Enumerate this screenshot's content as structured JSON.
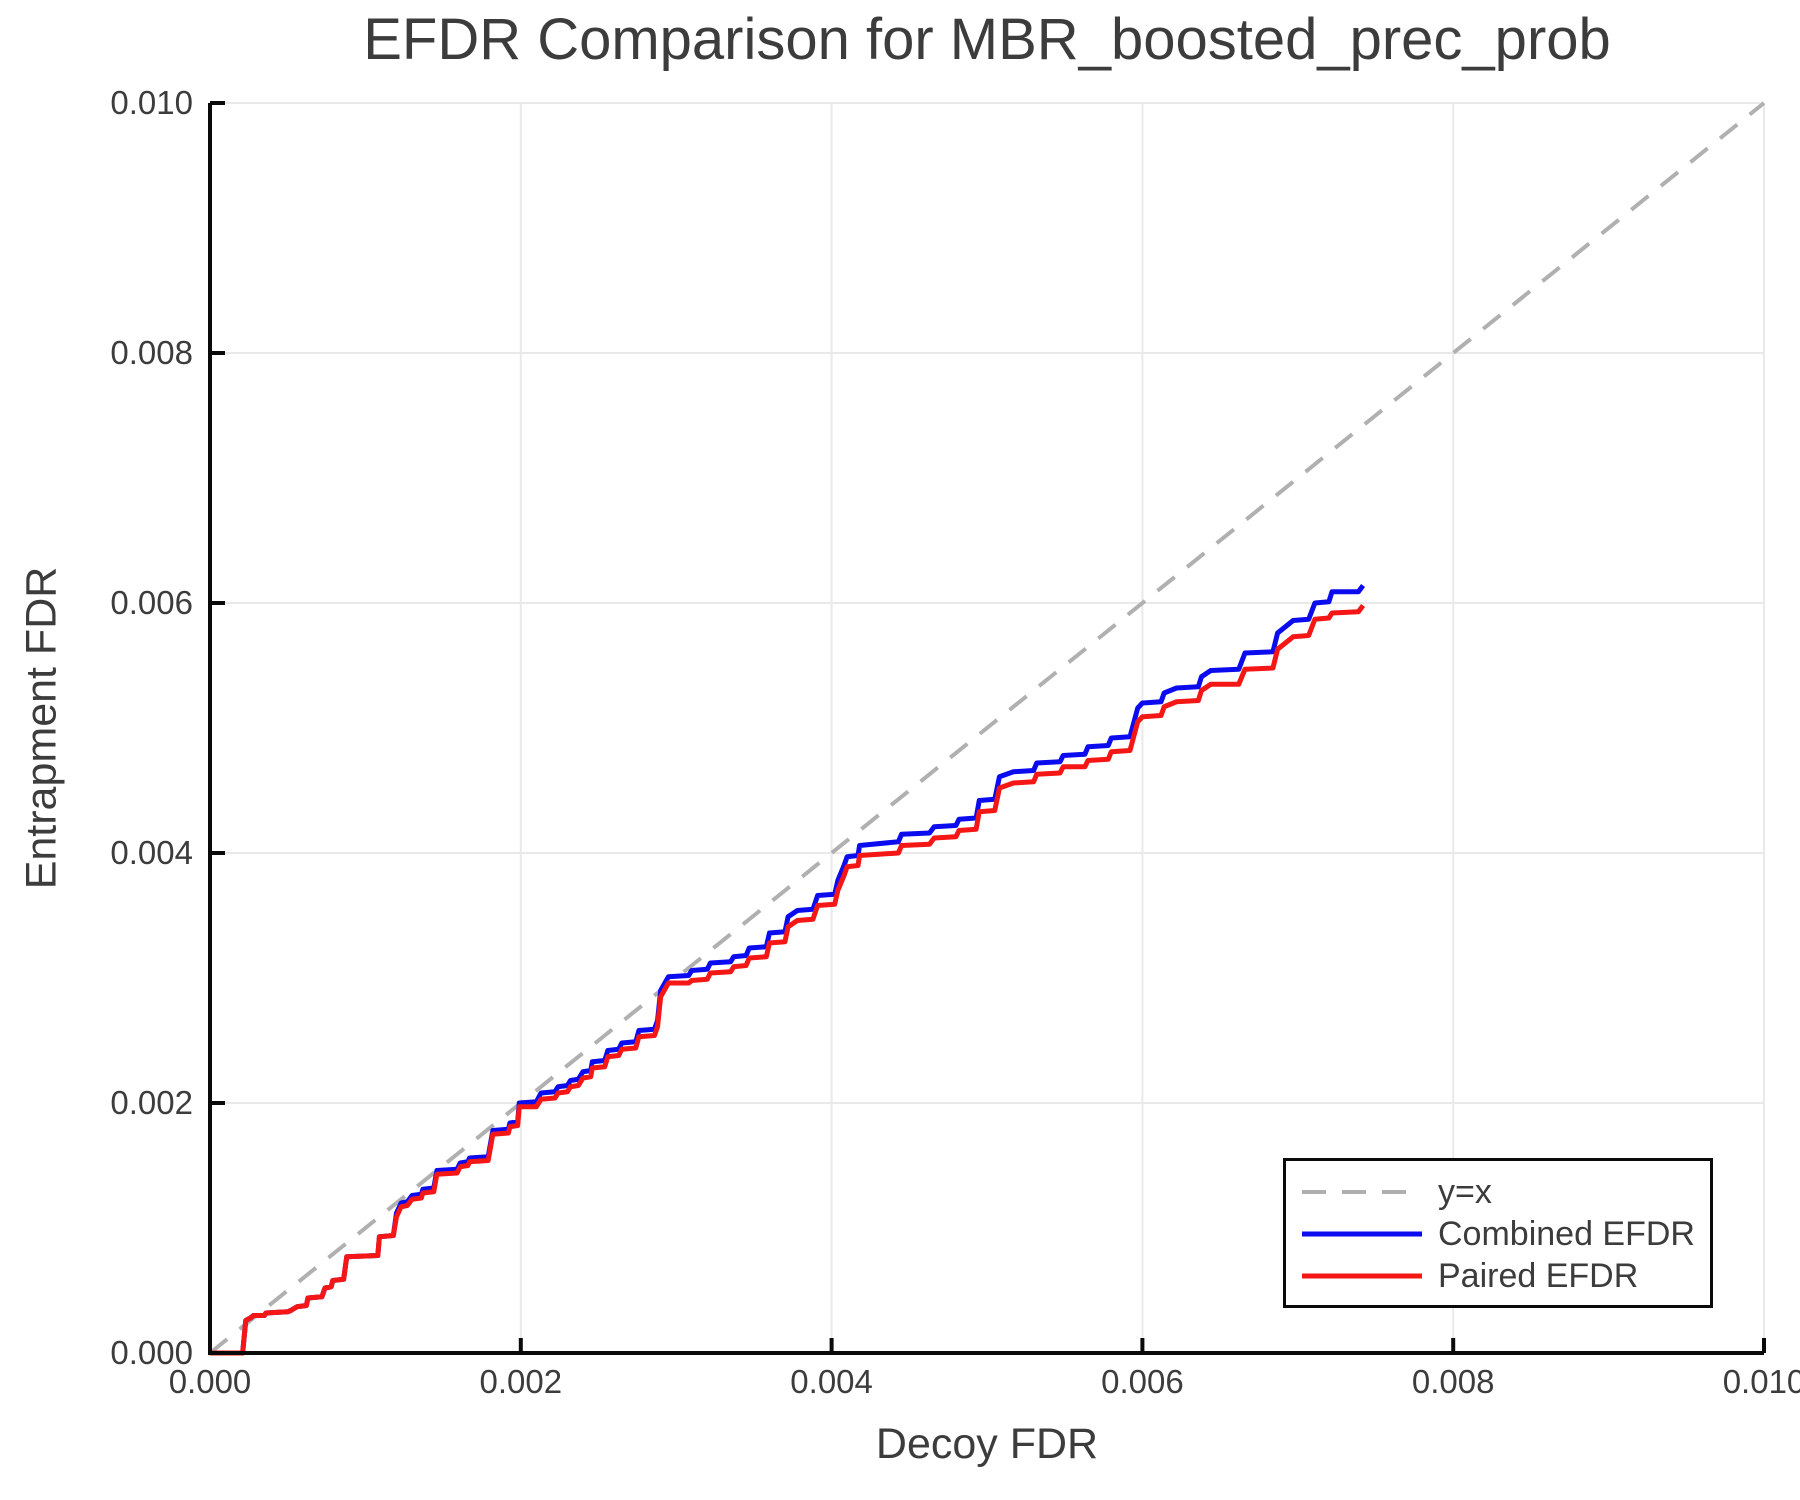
{
  "title": "EFDR Comparison for MBR_boosted_prec_prob",
  "chart_data": {
    "type": "line",
    "title": "EFDR Comparison for MBR_boosted_prec_prob",
    "xlabel": "Decoy FDR",
    "ylabel": "Entrapment FDR",
    "xlim": [
      0.0,
      0.01
    ],
    "ylim": [
      0.0,
      0.01
    ],
    "xtick_values": [
      0.0,
      0.002,
      0.004,
      0.006,
      0.008,
      0.01
    ],
    "xtick_labels": [
      "0.000",
      "0.002",
      "0.004",
      "0.006",
      "0.008",
      "0.010"
    ],
    "ytick_values": [
      0.0,
      0.002,
      0.004,
      0.006,
      0.008,
      0.01
    ],
    "ytick_labels": [
      "0.000",
      "0.002",
      "0.004",
      "0.006",
      "0.008",
      "0.010"
    ],
    "grid": true,
    "grid_color": "#e9e9e9",
    "spine_color": "#0a0a0a",
    "text_color": "#3c3c3c",
    "background_color": "#ffffff",
    "legend": {
      "position": "lower-right"
    },
    "point_unit": 0.001,
    "series": [
      {
        "name": "y=x",
        "color": "#b0b0b0",
        "style": "dashed",
        "width": 4,
        "points": [
          [
            0.0,
            0.0
          ],
          [
            10.0,
            10.0
          ]
        ]
      },
      {
        "name": "Combined EFDR",
        "color": "#0b0bf0",
        "style": "solid",
        "width": 5,
        "points": [
          [
            0.0,
            0.0
          ],
          [
            0.21,
            0.0
          ],
          [
            0.23,
            0.26
          ],
          [
            0.26,
            0.28
          ],
          [
            0.28,
            0.3
          ],
          [
            0.35,
            0.3
          ],
          [
            0.36,
            0.32
          ],
          [
            0.5,
            0.33
          ],
          [
            0.52,
            0.34
          ],
          [
            0.56,
            0.37
          ],
          [
            0.62,
            0.38
          ],
          [
            0.63,
            0.44
          ],
          [
            0.72,
            0.45
          ],
          [
            0.74,
            0.52
          ],
          [
            0.78,
            0.53
          ],
          [
            0.79,
            0.58
          ],
          [
            0.86,
            0.59
          ],
          [
            0.88,
            0.77
          ],
          [
            1.08,
            0.78
          ],
          [
            1.09,
            0.93
          ],
          [
            1.18,
            0.94
          ],
          [
            1.2,
            1.12
          ],
          [
            1.23,
            1.2
          ],
          [
            1.27,
            1.21
          ],
          [
            1.3,
            1.26
          ],
          [
            1.36,
            1.27
          ],
          [
            1.37,
            1.31
          ],
          [
            1.44,
            1.32
          ],
          [
            1.46,
            1.46
          ],
          [
            1.59,
            1.47
          ],
          [
            1.61,
            1.52
          ],
          [
            1.66,
            1.53
          ],
          [
            1.67,
            1.56
          ],
          [
            1.79,
            1.57
          ],
          [
            1.82,
            1.78
          ],
          [
            1.92,
            1.79
          ],
          [
            1.93,
            1.84
          ],
          [
            1.98,
            1.85
          ],
          [
            1.99,
            2.0
          ],
          [
            2.1,
            2.01
          ],
          [
            2.13,
            2.08
          ],
          [
            2.22,
            2.09
          ],
          [
            2.24,
            2.13
          ],
          [
            2.3,
            2.14
          ],
          [
            2.32,
            2.18
          ],
          [
            2.37,
            2.19
          ],
          [
            2.4,
            2.25
          ],
          [
            2.45,
            2.26
          ],
          [
            2.46,
            2.33
          ],
          [
            2.54,
            2.34
          ],
          [
            2.56,
            2.42
          ],
          [
            2.63,
            2.43
          ],
          [
            2.65,
            2.48
          ],
          [
            2.74,
            2.49
          ],
          [
            2.76,
            2.58
          ],
          [
            2.86,
            2.59
          ],
          [
            2.88,
            2.66
          ],
          [
            2.9,
            2.9
          ],
          [
            2.95,
            3.01
          ],
          [
            3.08,
            3.02
          ],
          [
            3.1,
            3.06
          ],
          [
            3.2,
            3.07
          ],
          [
            3.22,
            3.12
          ],
          [
            3.35,
            3.13
          ],
          [
            3.37,
            3.17
          ],
          [
            3.45,
            3.18
          ],
          [
            3.47,
            3.24
          ],
          [
            3.58,
            3.25
          ],
          [
            3.6,
            3.36
          ],
          [
            3.7,
            3.37
          ],
          [
            3.72,
            3.49
          ],
          [
            3.78,
            3.54
          ],
          [
            3.88,
            3.55
          ],
          [
            3.91,
            3.66
          ],
          [
            4.02,
            3.67
          ],
          [
            4.04,
            3.78
          ],
          [
            4.08,
            3.9
          ],
          [
            4.1,
            3.97
          ],
          [
            4.17,
            3.98
          ],
          [
            4.18,
            4.06
          ],
          [
            4.43,
            4.09
          ],
          [
            4.45,
            4.15
          ],
          [
            4.63,
            4.16
          ],
          [
            4.66,
            4.21
          ],
          [
            4.8,
            4.22
          ],
          [
            4.82,
            4.27
          ],
          [
            4.93,
            4.28
          ],
          [
            4.95,
            4.42
          ],
          [
            5.05,
            4.43
          ],
          [
            5.08,
            4.61
          ],
          [
            5.17,
            4.65
          ],
          [
            5.3,
            4.66
          ],
          [
            5.32,
            4.72
          ],
          [
            5.47,
            4.73
          ],
          [
            5.49,
            4.78
          ],
          [
            5.63,
            4.79
          ],
          [
            5.65,
            4.85
          ],
          [
            5.78,
            4.86
          ],
          [
            5.8,
            4.92
          ],
          [
            5.92,
            4.93
          ],
          [
            5.97,
            5.16
          ],
          [
            6.0,
            5.2
          ],
          [
            6.12,
            5.21
          ],
          [
            6.14,
            5.28
          ],
          [
            6.22,
            5.32
          ],
          [
            6.36,
            5.33
          ],
          [
            6.38,
            5.41
          ],
          [
            6.44,
            5.46
          ],
          [
            6.62,
            5.47
          ],
          [
            6.66,
            5.6
          ],
          [
            6.84,
            5.61
          ],
          [
            6.87,
            5.76
          ],
          [
            6.97,
            5.86
          ],
          [
            7.07,
            5.87
          ],
          [
            7.11,
            6.0
          ],
          [
            7.2,
            6.01
          ],
          [
            7.22,
            6.09
          ],
          [
            7.39,
            6.09
          ],
          [
            7.42,
            6.14
          ]
        ]
      },
      {
        "name": "Paired EFDR",
        "color": "#f51616",
        "style": "solid",
        "width": 5,
        "points": [
          [
            0.0,
            0.0
          ],
          [
            0.21,
            0.0
          ],
          [
            0.23,
            0.26
          ],
          [
            0.26,
            0.28
          ],
          [
            0.28,
            0.3
          ],
          [
            0.35,
            0.3
          ],
          [
            0.36,
            0.32
          ],
          [
            0.5,
            0.33
          ],
          [
            0.52,
            0.34
          ],
          [
            0.56,
            0.37
          ],
          [
            0.62,
            0.38
          ],
          [
            0.63,
            0.44
          ],
          [
            0.72,
            0.45
          ],
          [
            0.74,
            0.52
          ],
          [
            0.78,
            0.53
          ],
          [
            0.79,
            0.58
          ],
          [
            0.86,
            0.59
          ],
          [
            0.88,
            0.77
          ],
          [
            1.08,
            0.78
          ],
          [
            1.09,
            0.93
          ],
          [
            1.18,
            0.94
          ],
          [
            1.2,
            1.09
          ],
          [
            1.23,
            1.17
          ],
          [
            1.27,
            1.18
          ],
          [
            1.3,
            1.23
          ],
          [
            1.36,
            1.24
          ],
          [
            1.37,
            1.28
          ],
          [
            1.44,
            1.29
          ],
          [
            1.46,
            1.43
          ],
          [
            1.59,
            1.44
          ],
          [
            1.61,
            1.49
          ],
          [
            1.66,
            1.5
          ],
          [
            1.67,
            1.53
          ],
          [
            1.79,
            1.54
          ],
          [
            1.82,
            1.75
          ],
          [
            1.92,
            1.76
          ],
          [
            1.93,
            1.81
          ],
          [
            1.98,
            1.82
          ],
          [
            1.99,
            1.97
          ],
          [
            2.1,
            1.97
          ],
          [
            2.13,
            2.03
          ],
          [
            2.22,
            2.04
          ],
          [
            2.24,
            2.08
          ],
          [
            2.3,
            2.09
          ],
          [
            2.32,
            2.13
          ],
          [
            2.37,
            2.14
          ],
          [
            2.4,
            2.2
          ],
          [
            2.45,
            2.21
          ],
          [
            2.46,
            2.28
          ],
          [
            2.54,
            2.29
          ],
          [
            2.56,
            2.37
          ],
          [
            2.63,
            2.38
          ],
          [
            2.65,
            2.43
          ],
          [
            2.74,
            2.44
          ],
          [
            2.76,
            2.53
          ],
          [
            2.86,
            2.54
          ],
          [
            2.88,
            2.61
          ],
          [
            2.9,
            2.85
          ],
          [
            2.95,
            2.96
          ],
          [
            3.08,
            2.96
          ],
          [
            3.1,
            2.98
          ],
          [
            3.2,
            2.99
          ],
          [
            3.22,
            3.04
          ],
          [
            3.35,
            3.05
          ],
          [
            3.37,
            3.09
          ],
          [
            3.45,
            3.1
          ],
          [
            3.47,
            3.16
          ],
          [
            3.58,
            3.17
          ],
          [
            3.6,
            3.28
          ],
          [
            3.7,
            3.29
          ],
          [
            3.72,
            3.41
          ],
          [
            3.78,
            3.46
          ],
          [
            3.88,
            3.47
          ],
          [
            3.91,
            3.58
          ],
          [
            4.02,
            3.59
          ],
          [
            4.04,
            3.7
          ],
          [
            4.08,
            3.82
          ],
          [
            4.1,
            3.89
          ],
          [
            4.17,
            3.9
          ],
          [
            4.18,
            3.98
          ],
          [
            4.43,
            4.0
          ],
          [
            4.45,
            4.06
          ],
          [
            4.63,
            4.07
          ],
          [
            4.66,
            4.12
          ],
          [
            4.8,
            4.13
          ],
          [
            4.82,
            4.18
          ],
          [
            4.93,
            4.19
          ],
          [
            4.95,
            4.33
          ],
          [
            5.05,
            4.34
          ],
          [
            5.08,
            4.52
          ],
          [
            5.17,
            4.56
          ],
          [
            5.3,
            4.57
          ],
          [
            5.32,
            4.63
          ],
          [
            5.47,
            4.64
          ],
          [
            5.49,
            4.69
          ],
          [
            5.63,
            4.69
          ],
          [
            5.65,
            4.74
          ],
          [
            5.78,
            4.75
          ],
          [
            5.8,
            4.81
          ],
          [
            5.92,
            4.82
          ],
          [
            5.97,
            5.05
          ],
          [
            6.0,
            5.09
          ],
          [
            6.12,
            5.1
          ],
          [
            6.14,
            5.17
          ],
          [
            6.22,
            5.21
          ],
          [
            6.36,
            5.22
          ],
          [
            6.38,
            5.3
          ],
          [
            6.44,
            5.35
          ],
          [
            6.62,
            5.35
          ],
          [
            6.66,
            5.47
          ],
          [
            6.84,
            5.48
          ],
          [
            6.87,
            5.63
          ],
          [
            6.97,
            5.73
          ],
          [
            7.07,
            5.74
          ],
          [
            7.11,
            5.87
          ],
          [
            7.2,
            5.88
          ],
          [
            7.22,
            5.92
          ],
          [
            7.39,
            5.93
          ],
          [
            7.42,
            5.98
          ]
        ]
      }
    ]
  }
}
